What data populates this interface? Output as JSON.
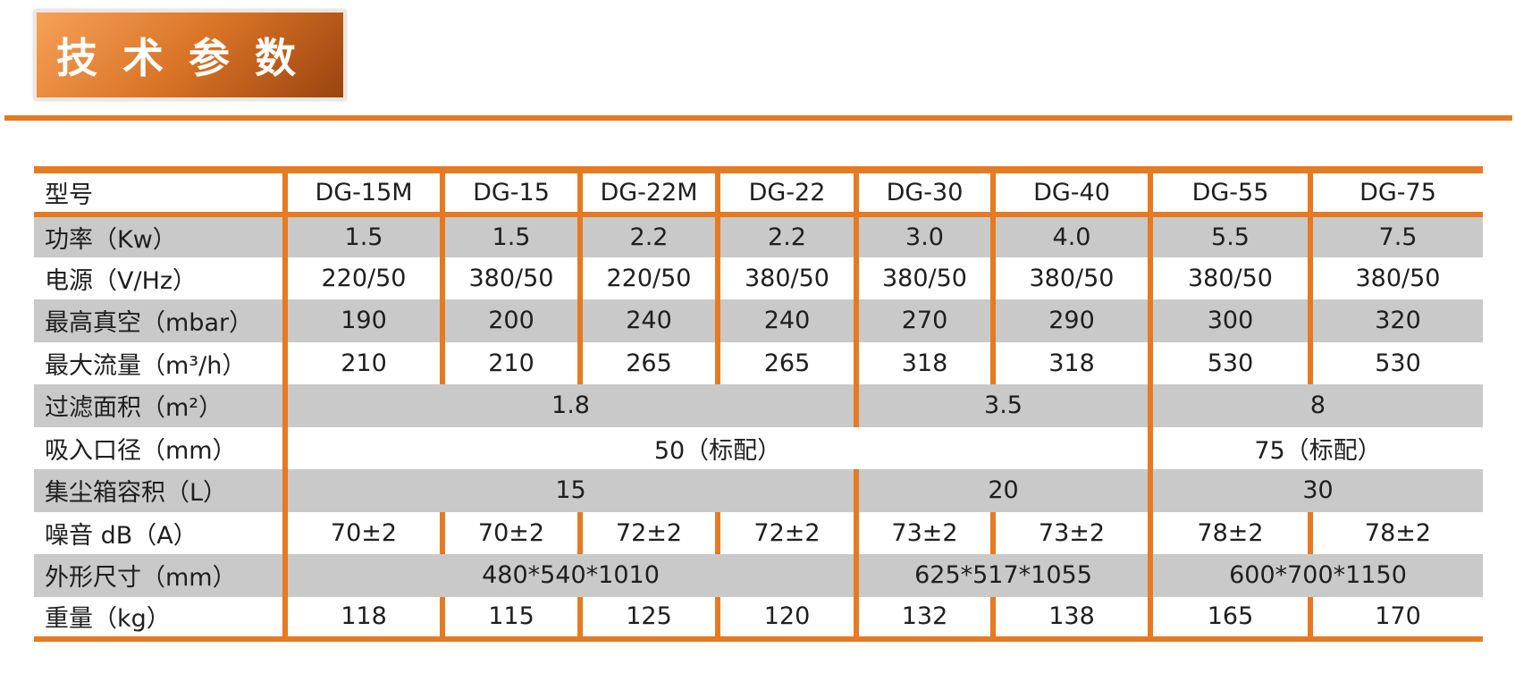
{
  "header": {
    "title": "技 术 参 数"
  },
  "table": {
    "columns": [
      "型号",
      "DG-15M",
      "DG-15",
      "DG-22M",
      "DG-22",
      "DG-30",
      "DG-40",
      "DG-55",
      "DG-75"
    ],
    "rows": [
      {
        "label": "功率（Kw）",
        "cells": [
          "1.5",
          "1.5",
          "2.2",
          "2.2",
          "3.0",
          "4.0",
          "5.5",
          "7.5"
        ]
      },
      {
        "label": "电源（V/Hz）",
        "cells": [
          "220/50",
          "380/50",
          "220/50",
          "380/50",
          "380/50",
          "380/50",
          "380/50",
          "380/50"
        ]
      },
      {
        "label": "最高真空（mbar）",
        "cells": [
          "190",
          "200",
          "240",
          "240",
          "270",
          "290",
          "300",
          "320"
        ]
      },
      {
        "label": "最大流量（m³/h）",
        "cells": [
          "210",
          "210",
          "265",
          "265",
          "318",
          "318",
          "530",
          "530"
        ]
      },
      {
        "label": "过滤面积（m²）",
        "cells": [
          "1.8",
          null,
          null,
          null,
          "3.5",
          null,
          "8",
          null
        ]
      },
      {
        "label": "吸入口径（mm）",
        "cells": [
          "50（标配）",
          null,
          null,
          null,
          null,
          null,
          "75（标配）",
          null
        ]
      },
      {
        "label": "集尘箱容积（L）",
        "cells": [
          "15",
          null,
          null,
          null,
          "20",
          null,
          "30",
          null
        ]
      },
      {
        "label": "噪音 dB（A）",
        "cells": [
          "70±2",
          "70±2",
          "72±2",
          "72±2",
          "73±2",
          "73±2",
          "78±2",
          "78±2"
        ]
      },
      {
        "label": "外形尺寸（mm）",
        "cells": [
          "480*540*1010",
          null,
          null,
          null,
          "625*517*1055",
          null,
          "600*700*1150",
          null
        ]
      },
      {
        "label": "重量（kg）",
        "cells": [
          "118",
          "115",
          "125",
          "120",
          "132",
          "138",
          "165",
          "170"
        ]
      }
    ]
  }
}
